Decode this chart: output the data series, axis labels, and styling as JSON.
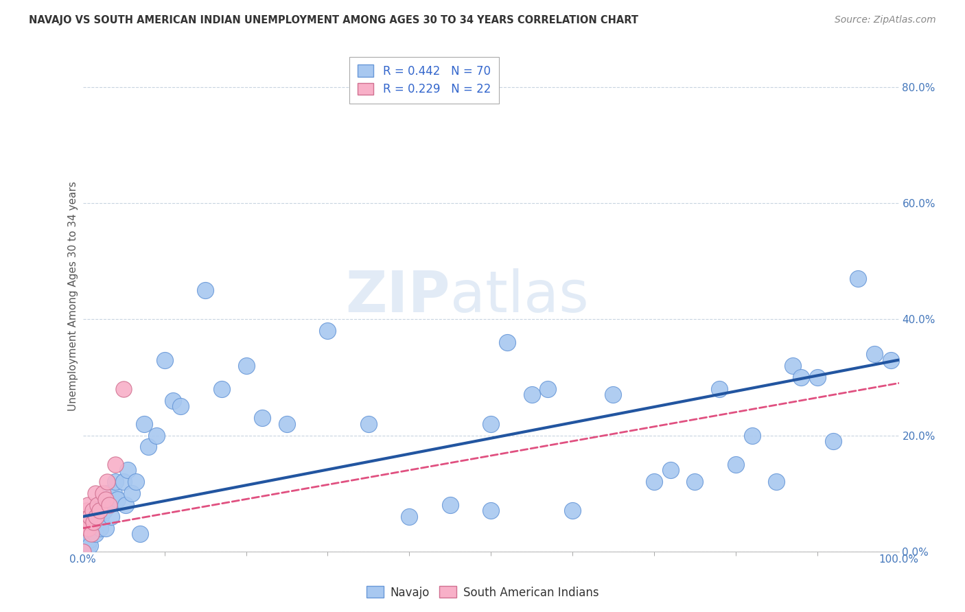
{
  "title": "NAVAJO VS SOUTH AMERICAN INDIAN UNEMPLOYMENT AMONG AGES 30 TO 34 YEARS CORRELATION CHART",
  "source": "Source: ZipAtlas.com",
  "ylabel": "Unemployment Among Ages 30 to 34 years",
  "watermark_zip": "ZIP",
  "watermark_atlas": "atlas",
  "navajo_R": 0.442,
  "navajo_N": 70,
  "sai_R": 0.229,
  "sai_N": 22,
  "navajo_color": "#a8c8f0",
  "navajo_edge_color": "#6898d8",
  "navajo_line_color": "#2255a0",
  "sai_color": "#f8b0c8",
  "sai_edge_color": "#d07090",
  "sai_line_color": "#e05080",
  "background_color": "#ffffff",
  "grid_color": "#c8d4e0",
  "legend_text_color": "#3366cc",
  "navajo_x": [
    0.0,
    0.002,
    0.003,
    0.004,
    0.005,
    0.006,
    0.007,
    0.008,
    0.009,
    0.01,
    0.012,
    0.013,
    0.015,
    0.015,
    0.016,
    0.018,
    0.02,
    0.021,
    0.022,
    0.025,
    0.026,
    0.028,
    0.03,
    0.032,
    0.035,
    0.038,
    0.04,
    0.042,
    0.05,
    0.052,
    0.055,
    0.06,
    0.065,
    0.07,
    0.075,
    0.08,
    0.09,
    0.1,
    0.11,
    0.12,
    0.15,
    0.17,
    0.2,
    0.22,
    0.25,
    0.3,
    0.35,
    0.4,
    0.45,
    0.5,
    0.5,
    0.52,
    0.55,
    0.57,
    0.6,
    0.65,
    0.7,
    0.72,
    0.75,
    0.78,
    0.8,
    0.82,
    0.85,
    0.87,
    0.88,
    0.9,
    0.92,
    0.95,
    0.97,
    0.99
  ],
  "navajo_y": [
    0.05,
    0.02,
    0.03,
    0.04,
    0.02,
    0.01,
    0.03,
    0.02,
    0.01,
    0.04,
    0.05,
    0.07,
    0.03,
    0.06,
    0.05,
    0.06,
    0.08,
    0.04,
    0.06,
    0.09,
    0.07,
    0.04,
    0.1,
    0.08,
    0.06,
    0.1,
    0.12,
    0.09,
    0.12,
    0.08,
    0.14,
    0.1,
    0.12,
    0.03,
    0.22,
    0.18,
    0.2,
    0.33,
    0.26,
    0.25,
    0.45,
    0.28,
    0.32,
    0.23,
    0.22,
    0.38,
    0.22,
    0.06,
    0.08,
    0.22,
    0.07,
    0.36,
    0.27,
    0.28,
    0.07,
    0.27,
    0.12,
    0.14,
    0.12,
    0.28,
    0.15,
    0.2,
    0.12,
    0.32,
    0.3,
    0.3,
    0.19,
    0.47,
    0.34,
    0.33
  ],
  "sai_x": [
    0.0,
    0.002,
    0.003,
    0.004,
    0.005,
    0.006,
    0.007,
    0.008,
    0.009,
    0.01,
    0.012,
    0.013,
    0.015,
    0.016,
    0.018,
    0.02,
    0.025,
    0.028,
    0.03,
    0.032,
    0.04,
    0.05
  ],
  "sai_y": [
    0.0,
    0.05,
    0.06,
    0.07,
    0.04,
    0.08,
    0.04,
    0.05,
    0.06,
    0.03,
    0.07,
    0.05,
    0.1,
    0.06,
    0.08,
    0.07,
    0.1,
    0.09,
    0.12,
    0.08,
    0.15,
    0.28
  ],
  "xlim": [
    0.0,
    1.0
  ],
  "ylim": [
    0.0,
    0.88
  ],
  "ytick_positions": [
    0.0,
    0.2,
    0.4,
    0.6,
    0.8
  ],
  "ytick_labels": [
    "0.0%",
    "20.0%",
    "40.0%",
    "60.0%",
    "80.0%"
  ],
  "navajo_intercept": 0.06,
  "navajo_slope": 0.27,
  "sai_intercept": 0.04,
  "sai_slope": 0.25
}
